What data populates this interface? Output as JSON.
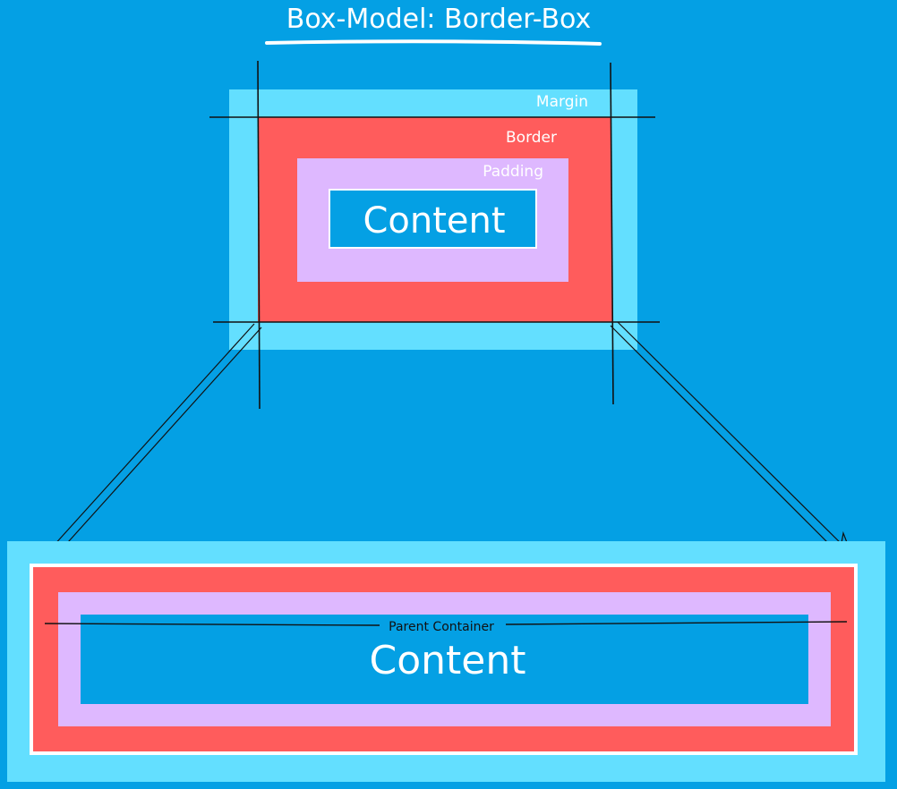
{
  "title": "Box-Model: Border-Box",
  "top_box": {
    "margin_label": "Margin",
    "border_label": "Border",
    "padding_label": "Padding",
    "content_label": "Content"
  },
  "bottom_box": {
    "parent_label": "Parent Container",
    "content_label": "Content"
  },
  "colors": {
    "background": "#04a0e4",
    "margin": "#63dfff",
    "border": "#ff5c5c",
    "padding": "#deb8ff",
    "content": "#04a0e4",
    "line": "#111111",
    "text": "#ffffff"
  }
}
